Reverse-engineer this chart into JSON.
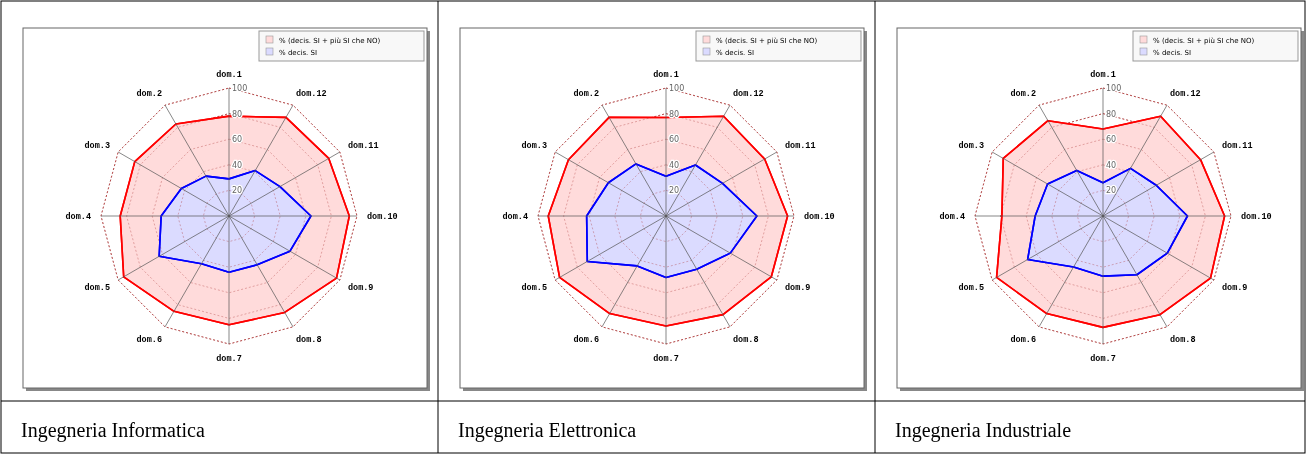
{
  "chart_data": [
    {
      "type": "radar",
      "title": "Ingegneria Informatica",
      "categories": [
        "dom.1",
        "dom.12",
        "dom.11",
        "dom.10",
        "dom.9",
        "dom.8",
        "dom.7",
        "dom.6",
        "dom.5",
        "dom.4",
        "dom.3",
        "dom.2"
      ],
      "ylim": [
        0,
        100
      ],
      "yticks": [
        20,
        40,
        60,
        80,
        100
      ],
      "grid": true,
      "legend": "top right",
      "series": [
        {
          "name": "% (decis. SI + più SI che NO)",
          "color": "#ff0000",
          "values": [
            78,
            89,
            90,
            94,
            97,
            87,
            85,
            86,
            95,
            85,
            85,
            83
          ]
        },
        {
          "name": "% decis. SI",
          "color": "#0000ff",
          "values": [
            29,
            41,
            46,
            64,
            55,
            44,
            44,
            43,
            63,
            53,
            43,
            36
          ]
        }
      ]
    },
    {
      "type": "radar",
      "title": "Ingegneria Elettronica",
      "categories": [
        "dom.1",
        "dom.12",
        "dom.11",
        "dom.10",
        "dom.9",
        "dom.8",
        "dom.7",
        "dom.6",
        "dom.5",
        "dom.4",
        "dom.3",
        "dom.2"
      ],
      "ylim": [
        0,
        100
      ],
      "yticks": [
        20,
        40,
        60,
        80,
        100
      ],
      "grid": true,
      "legend": "top right",
      "series": [
        {
          "name": "% (decis. SI + più SI che NO)",
          "color": "#ff0000",
          "values": [
            77,
            90,
            89,
            95,
            95,
            89,
            86,
            88,
            96,
            92,
            88,
            89
          ]
        },
        {
          "name": "% decis. SI",
          "color": "#0000ff",
          "values": [
            31,
            46,
            51,
            71,
            58,
            48,
            48,
            45,
            71,
            62,
            52,
            47
          ]
        }
      ]
    },
    {
      "type": "radar",
      "title": "Ingegneria Industriale",
      "categories": [
        "dom.1",
        "dom.12",
        "dom.11",
        "dom.10",
        "dom.9",
        "dom.8",
        "dom.7",
        "dom.6",
        "dom.5",
        "dom.4",
        "dom.3",
        "dom.2"
      ],
      "ylim": [
        0,
        100
      ],
      "yticks": [
        20,
        40,
        60,
        80,
        100
      ],
      "grid": true,
      "legend": "top right",
      "series": [
        {
          "name": "% (decis. SI + più SI che NO)",
          "color": "#ff0000",
          "values": [
            68,
            90,
            88,
            95,
            97,
            89,
            87,
            88,
            96,
            79,
            90,
            86
          ]
        },
        {
          "name": "% decis. SI",
          "color": "#0000ff",
          "values": [
            26,
            43,
            48,
            66,
            58,
            53,
            47,
            46,
            68,
            53,
            50,
            41
          ]
        }
      ]
    }
  ]
}
